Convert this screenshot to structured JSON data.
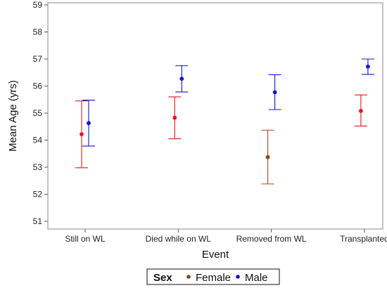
{
  "chart_data": {
    "type": "scatter",
    "subtype": "error-bar",
    "title": "",
    "xlabel": "Event",
    "ylabel": "Mean Age (yrs)",
    "categories": [
      "Still on WL",
      "Died while on WL",
      "Removed from WL",
      "Transplanted"
    ],
    "ylim": [
      51,
      59
    ],
    "yticks": [
      "51",
      "52",
      "53",
      "54",
      "55",
      "56",
      "57",
      "58",
      "59"
    ],
    "grid": false,
    "legend_placement": "bottom-center",
    "legend_title": "Sex",
    "series": [
      {
        "name": "Female",
        "color": "#e8141b",
        "legend_color": "#7a4a18",
        "means": [
          54.22,
          54.83,
          53.37,
          55.08
        ],
        "lower": [
          52.98,
          54.05,
          52.38,
          54.52
        ],
        "upper": [
          55.45,
          55.6,
          54.37,
          55.67
        ],
        "point_colors": [
          "#e8141b",
          "#e8141b",
          "#7a4a18",
          "#e8141b"
        ],
        "bar_colors": [
          "#c8281e",
          "#e8141b",
          "#a8451c",
          "#e8141b"
        ]
      },
      {
        "name": "Male",
        "color": "#1010d8",
        "legend_color": "#1010d8",
        "means": [
          54.63,
          56.27,
          55.77,
          56.72
        ],
        "lower": [
          53.78,
          55.78,
          55.13,
          56.43
        ],
        "upper": [
          55.48,
          56.75,
          56.42,
          57.0
        ],
        "point_colors": [
          "#1010d8",
          "#1010d8",
          "#1010d8",
          "#1010d8"
        ],
        "bar_colors": [
          "#1010d8",
          "#1010d8",
          "#1010d8",
          "#1010d8"
        ]
      }
    ]
  }
}
